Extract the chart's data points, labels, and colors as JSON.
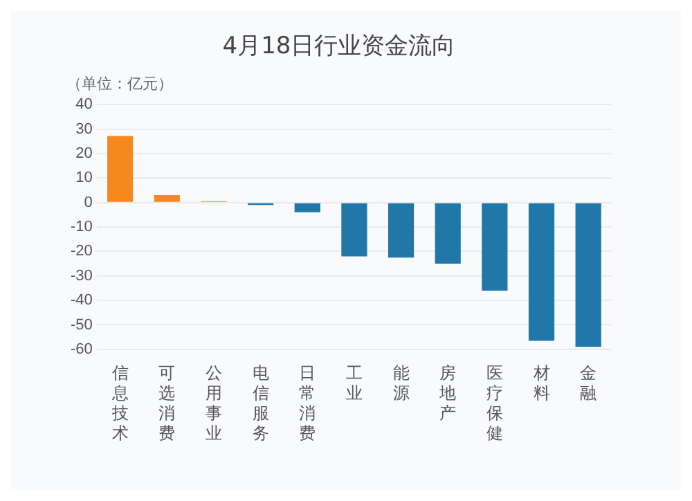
{
  "chart_data": {
    "type": "bar",
    "title": "4月18日行业资金流向",
    "ylabel": "（单位：亿元）",
    "categories": [
      "信息技术",
      "可选消费",
      "公用事业",
      "电信服务",
      "日常消费",
      "工业",
      "能源",
      "房地产",
      "医疗保健",
      "材料",
      "金融"
    ],
    "values": [
      27.2,
      3,
      0.5,
      -1,
      -4,
      -22,
      -22.5,
      -25,
      -36,
      -56.5,
      -59
    ],
    "colors": [
      "#f5891f",
      "#f5891f",
      "#f5891f",
      "#2077a8",
      "#2077a8",
      "#2077a8",
      "#2077a8",
      "#2077a8",
      "#2077a8",
      "#2077a8",
      "#2077a8"
    ],
    "ylim": [
      -60,
      40
    ],
    "yticks": [
      -60,
      -50,
      -40,
      -30,
      -20,
      -10,
      0,
      10,
      20,
      30,
      40
    ],
    "grid": "y",
    "legend": false
  }
}
